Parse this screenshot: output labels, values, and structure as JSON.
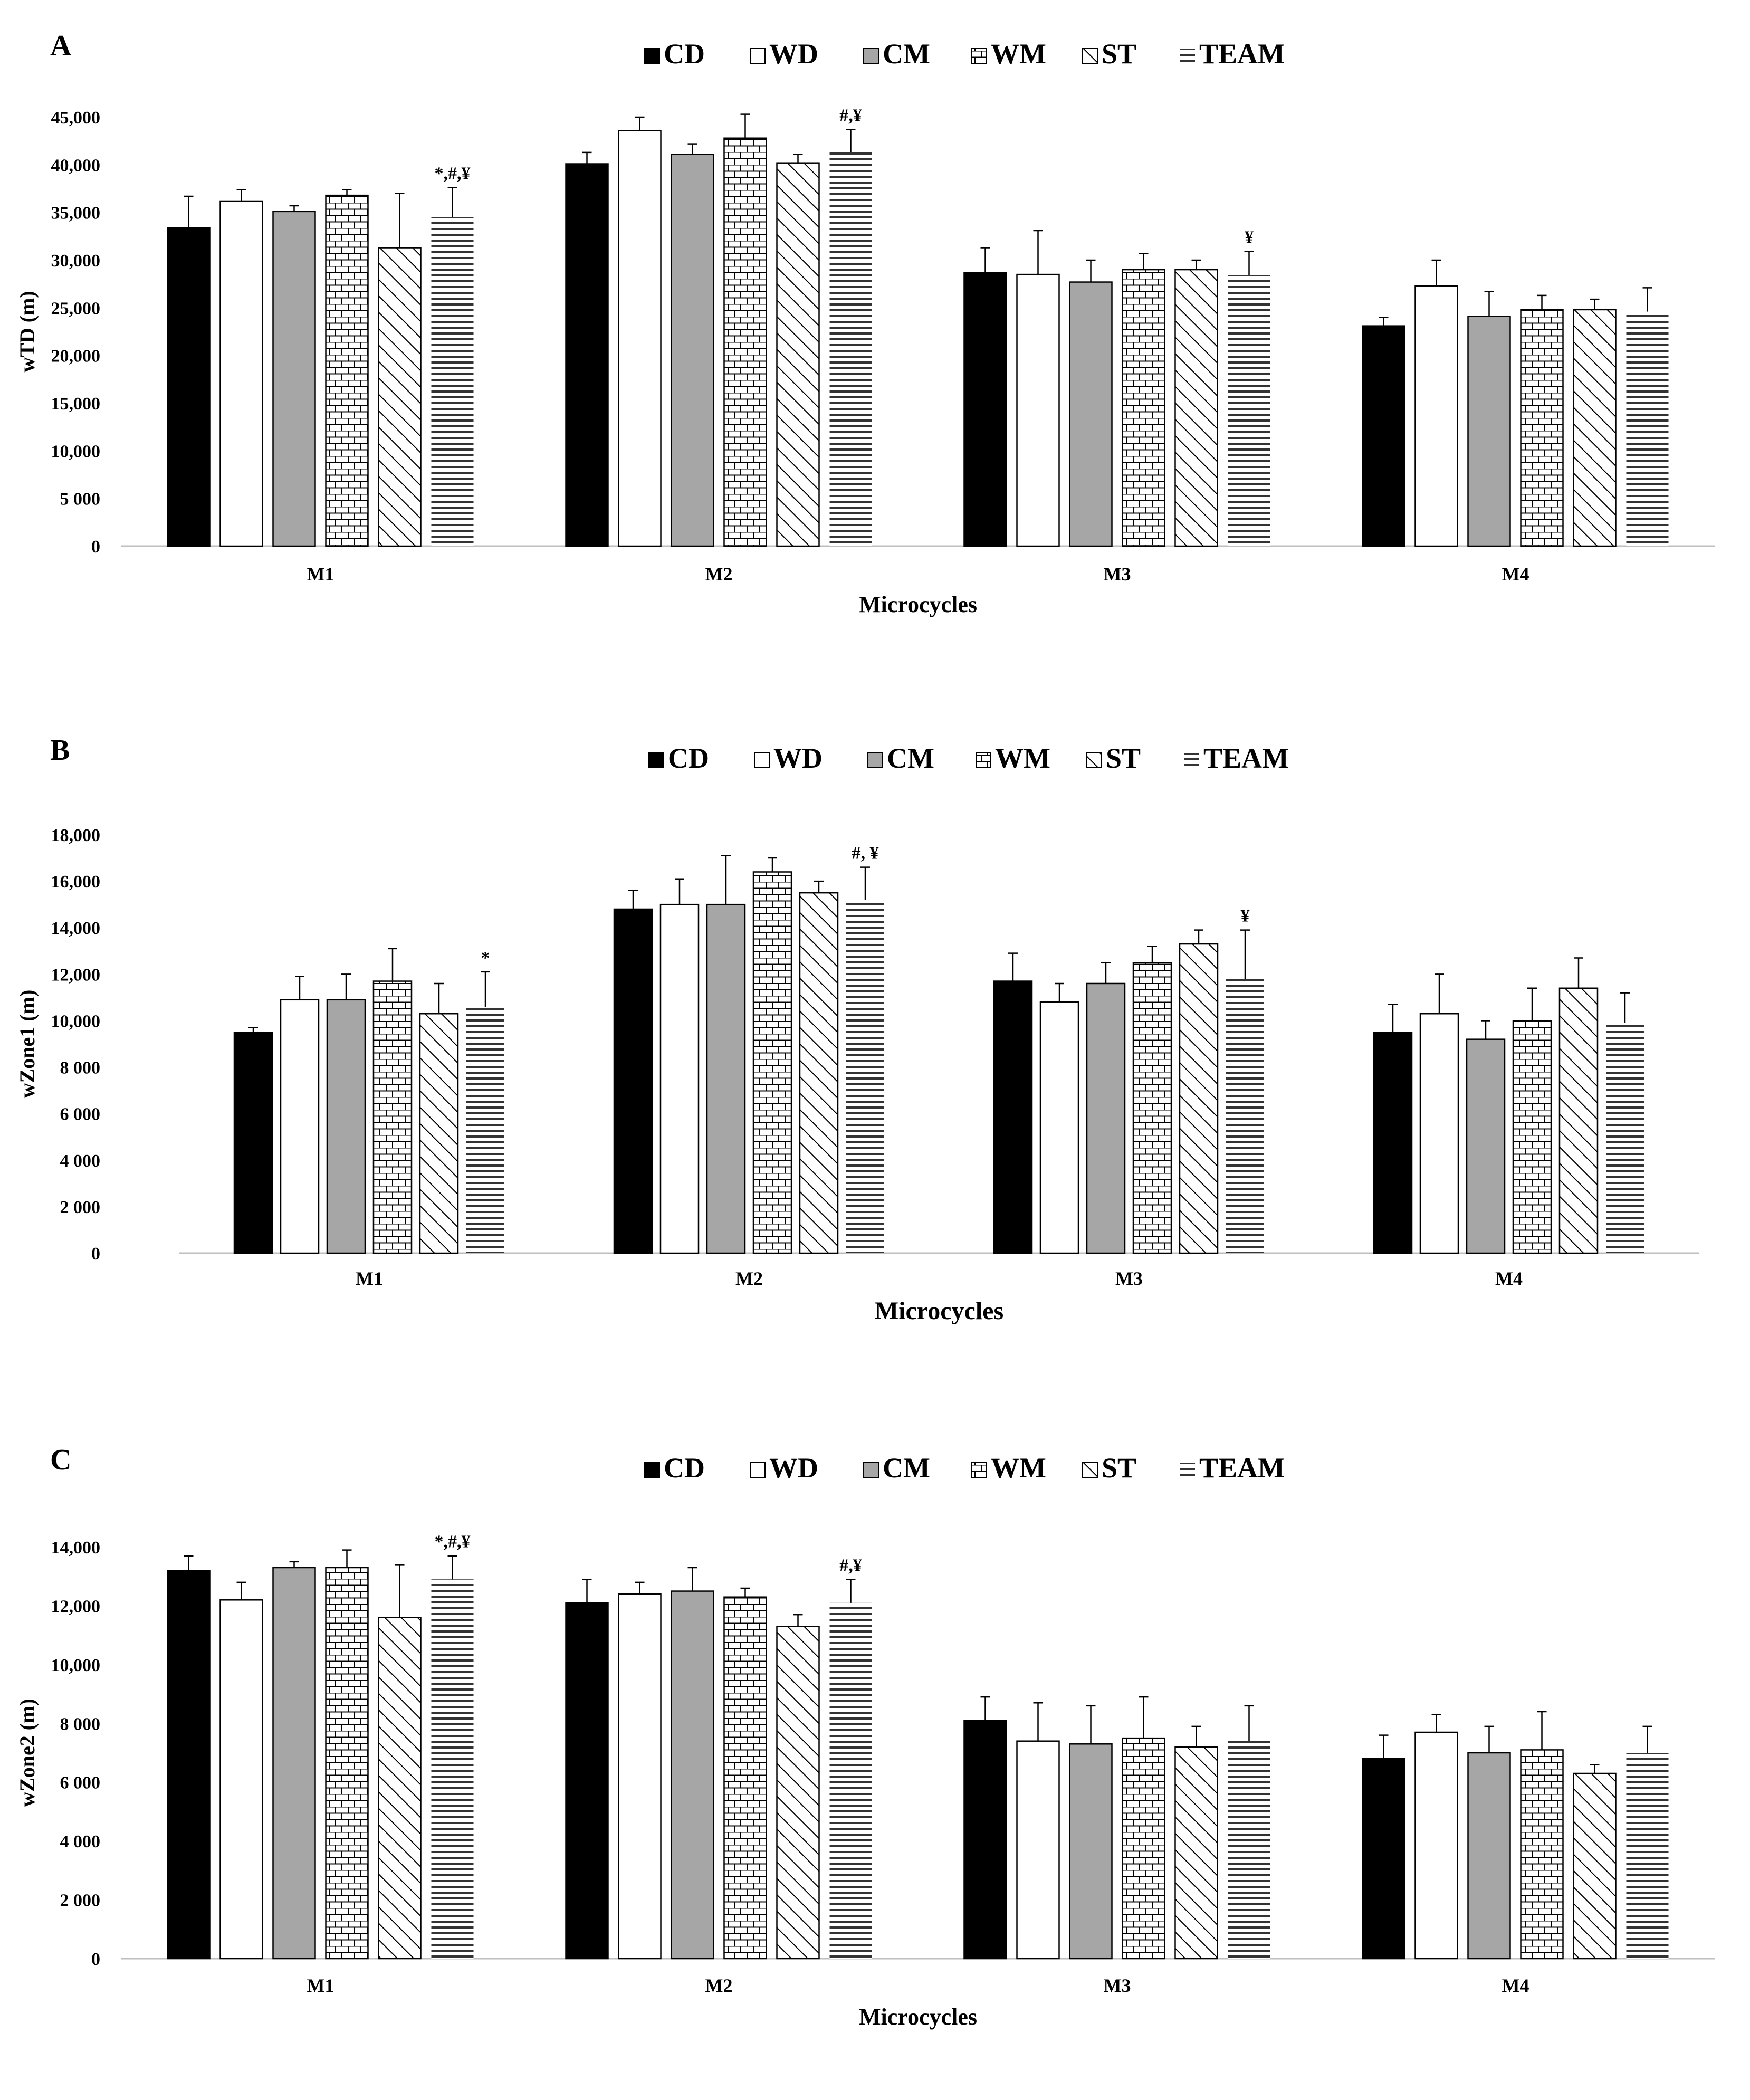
{
  "colors": {
    "ink": "#000000",
    "cm_fill": "#a6a6a6",
    "axis": "#bfbfbf",
    "background": "#ffffff"
  },
  "legend_items": [
    {
      "key": "CD",
      "label": "CD",
      "pattern": "solid-black"
    },
    {
      "key": "WD",
      "label": "WD",
      "pattern": "white"
    },
    {
      "key": "CM",
      "label": "CM",
      "pattern": "solid-gray"
    },
    {
      "key": "WM",
      "label": "WM",
      "pattern": "brick"
    },
    {
      "key": "ST",
      "label": "ST",
      "pattern": "diagonal"
    },
    {
      "key": "TEAM",
      "label": "TEAM",
      "pattern": "horizontal"
    }
  ],
  "chart_data": [
    {
      "panel": "A",
      "type": "bar",
      "xlabel": "Microcycles",
      "ylabel": "wTD (m)",
      "categories": [
        "M1",
        "M2",
        "M3",
        "M4"
      ],
      "ylim": [
        0,
        45000
      ],
      "yticks": [
        0,
        5000,
        10000,
        15000,
        20000,
        25000,
        30000,
        35000,
        40000,
        45000
      ],
      "ytick_labels": [
        "0",
        "5 000",
        "10,000",
        "15,000",
        "20,000",
        "25,000",
        "30,000",
        "35,000",
        "40,000",
        "45,000"
      ],
      "series": [
        {
          "name": "CD",
          "values": [
            33400,
            40100,
            28700,
            23100
          ],
          "errors": [
            3300,
            1200,
            2600,
            900
          ]
        },
        {
          "name": "WD",
          "values": [
            36200,
            43600,
            28500,
            27300
          ],
          "errors": [
            1200,
            1400,
            4600,
            2700
          ]
        },
        {
          "name": "CM",
          "values": [
            35100,
            41100,
            27700,
            24100
          ],
          "errors": [
            600,
            1100,
            2300,
            2600
          ]
        },
        {
          "name": "WM",
          "values": [
            36800,
            42800,
            29000,
            24800
          ],
          "errors": [
            600,
            2500,
            1700,
            1500
          ]
        },
        {
          "name": "ST",
          "values": [
            31300,
            40200,
            29000,
            24800
          ],
          "errors": [
            5700,
            900,
            1000,
            1100
          ]
        },
        {
          "name": "TEAM",
          "values": [
            34500,
            41300,
            28400,
            24600
          ],
          "errors": [
            3100,
            2400,
            2500,
            2500
          ]
        }
      ],
      "annotations": [
        {
          "category": "M1",
          "series": "TEAM",
          "text": "*,#,¥"
        },
        {
          "category": "M2",
          "series": "TEAM",
          "text": "#,¥"
        },
        {
          "category": "M3",
          "series": "TEAM",
          "text": "¥"
        }
      ]
    },
    {
      "panel": "B",
      "type": "bar",
      "xlabel": "Microcycles",
      "ylabel": "wZone1 (m)",
      "categories": [
        "M1",
        "M2",
        "M3",
        "M4"
      ],
      "ylim": [
        0,
        18000
      ],
      "yticks": [
        0,
        2000,
        4000,
        6000,
        8000,
        10000,
        12000,
        14000,
        16000,
        18000
      ],
      "ytick_labels": [
        "0",
        "2 000",
        "4 000",
        "6 000",
        "8 000",
        "10,000",
        "12,000",
        "14,000",
        "16,000",
        "18,000"
      ],
      "series": [
        {
          "name": "CD",
          "values": [
            9500,
            14800,
            11700,
            9500
          ],
          "errors": [
            200,
            800,
            1200,
            1200
          ]
        },
        {
          "name": "WD",
          "values": [
            10900,
            15000,
            10800,
            10300
          ],
          "errors": [
            1000,
            1100,
            800,
            1700
          ]
        },
        {
          "name": "CM",
          "values": [
            10900,
            15000,
            11600,
            9200
          ],
          "errors": [
            1100,
            2100,
            900,
            800
          ]
        },
        {
          "name": "WM",
          "values": [
            11700,
            16400,
            12500,
            10000
          ],
          "errors": [
            1400,
            600,
            700,
            1400
          ]
        },
        {
          "name": "ST",
          "values": [
            10300,
            15500,
            13300,
            11400
          ],
          "errors": [
            1300,
            500,
            600,
            1300
          ]
        },
        {
          "name": "TEAM",
          "values": [
            10600,
            15200,
            11800,
            9900
          ],
          "errors": [
            1500,
            1400,
            2100,
            1300
          ]
        }
      ],
      "annotations": [
        {
          "category": "M1",
          "series": "TEAM",
          "text": "*"
        },
        {
          "category": "M2",
          "series": "TEAM",
          "text": "#, ¥"
        },
        {
          "category": "M3",
          "series": "TEAM",
          "text": "¥"
        }
      ]
    },
    {
      "panel": "C",
      "type": "bar",
      "xlabel": "Microcycles",
      "ylabel": "wZone2 (m)",
      "categories": [
        "M1",
        "M2",
        "M3",
        "M4"
      ],
      "ylim": [
        0,
        14000
      ],
      "yticks": [
        0,
        2000,
        4000,
        6000,
        8000,
        10000,
        12000,
        14000
      ],
      "ytick_labels": [
        "0",
        "2 000",
        "4 000",
        "6 000",
        "8 000",
        "10,000",
        "12,000",
        "14,000"
      ],
      "series": [
        {
          "name": "CD",
          "values": [
            13200,
            12100,
            8100,
            6800
          ],
          "errors": [
            500,
            800,
            800,
            800
          ]
        },
        {
          "name": "WD",
          "values": [
            12200,
            12400,
            7400,
            7700
          ],
          "errors": [
            600,
            400,
            1300,
            600
          ]
        },
        {
          "name": "CM",
          "values": [
            13300,
            12500,
            7300,
            7000
          ],
          "errors": [
            200,
            800,
            1300,
            900
          ]
        },
        {
          "name": "WM",
          "values": [
            13300,
            12300,
            7500,
            7100
          ],
          "errors": [
            600,
            300,
            1400,
            1300
          ]
        },
        {
          "name": "ST",
          "values": [
            11600,
            11300,
            7200,
            6300
          ],
          "errors": [
            1800,
            400,
            700,
            300
          ]
        },
        {
          "name": "TEAM",
          "values": [
            12900,
            12100,
            7400,
            7000
          ],
          "errors": [
            800,
            800,
            1200,
            900
          ]
        }
      ],
      "annotations": [
        {
          "category": "M1",
          "series": "TEAM",
          "text": "*,#,¥"
        },
        {
          "category": "M2",
          "series": "TEAM",
          "text": "#,¥"
        }
      ]
    }
  ]
}
